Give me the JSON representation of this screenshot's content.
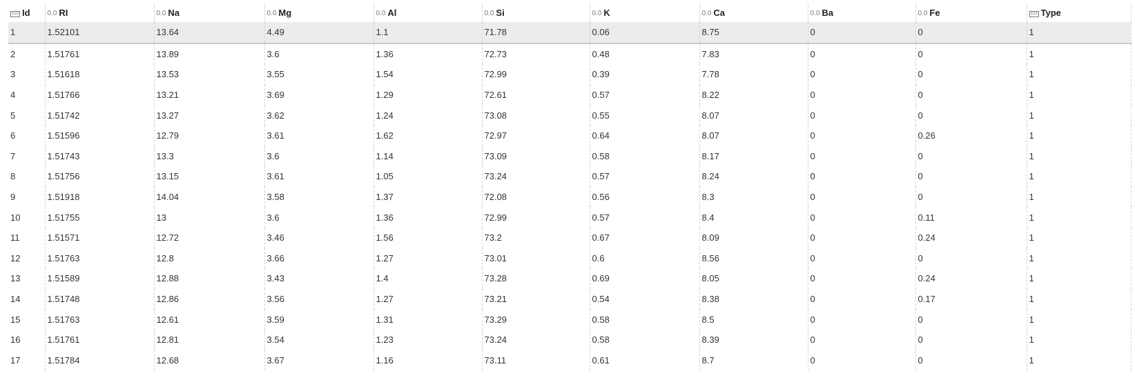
{
  "columns": [
    {
      "key": "id",
      "label": "Id",
      "type_icon": "123",
      "type": "int"
    },
    {
      "key": "ri",
      "label": "RI",
      "type_icon": "0.0",
      "type": "float"
    },
    {
      "key": "na",
      "label": "Na",
      "type_icon": "0.0",
      "type": "float"
    },
    {
      "key": "mg",
      "label": "Mg",
      "type_icon": "0.0",
      "type": "float"
    },
    {
      "key": "al",
      "label": "Al",
      "type_icon": "0.0",
      "type": "float"
    },
    {
      "key": "si",
      "label": "Si",
      "type_icon": "0.0",
      "type": "float"
    },
    {
      "key": "k",
      "label": "K",
      "type_icon": "0.0",
      "type": "float"
    },
    {
      "key": "ca",
      "label": "Ca",
      "type_icon": "0.0",
      "type": "float"
    },
    {
      "key": "ba",
      "label": "Ba",
      "type_icon": "0.0",
      "type": "float"
    },
    {
      "key": "fe",
      "label": "Fe",
      "type_icon": "0.0",
      "type": "float"
    },
    {
      "key": "type",
      "label": "Type",
      "type_icon": "123",
      "type": "int"
    }
  ],
  "rows": [
    [
      "1",
      "1.52101",
      "13.64",
      "4.49",
      "1.1",
      "71.78",
      "0.06",
      "8.75",
      "0",
      "0",
      "1"
    ],
    [
      "2",
      "1.51761",
      "13.89",
      "3.6",
      "1.36",
      "72.73",
      "0.48",
      "7.83",
      "0",
      "0",
      "1"
    ],
    [
      "3",
      "1.51618",
      "13.53",
      "3.55",
      "1.54",
      "72.99",
      "0.39",
      "7.78",
      "0",
      "0",
      "1"
    ],
    [
      "4",
      "1.51766",
      "13.21",
      "3.69",
      "1.29",
      "72.61",
      "0.57",
      "8.22",
      "0",
      "0",
      "1"
    ],
    [
      "5",
      "1.51742",
      "13.27",
      "3.62",
      "1.24",
      "73.08",
      "0.55",
      "8.07",
      "0",
      "0",
      "1"
    ],
    [
      "6",
      "1.51596",
      "12.79",
      "3.61",
      "1.62",
      "72.97",
      "0.64",
      "8.07",
      "0",
      "0.26",
      "1"
    ],
    [
      "7",
      "1.51743",
      "13.3",
      "3.6",
      "1.14",
      "73.09",
      "0.58",
      "8.17",
      "0",
      "0",
      "1"
    ],
    [
      "8",
      "1.51756",
      "13.15",
      "3.61",
      "1.05",
      "73.24",
      "0.57",
      "8.24",
      "0",
      "0",
      "1"
    ],
    [
      "9",
      "1.51918",
      "14.04",
      "3.58",
      "1.37",
      "72.08",
      "0.56",
      "8.3",
      "0",
      "0",
      "1"
    ],
    [
      "10",
      "1.51755",
      "13",
      "3.6",
      "1.36",
      "72.99",
      "0.57",
      "8.4",
      "0",
      "0.11",
      "1"
    ],
    [
      "11",
      "1.51571",
      "12.72",
      "3.46",
      "1.56",
      "73.2",
      "0.67",
      "8.09",
      "0",
      "0.24",
      "1"
    ],
    [
      "12",
      "1.51763",
      "12.8",
      "3.66",
      "1.27",
      "73.01",
      "0.6",
      "8.56",
      "0",
      "0",
      "1"
    ],
    [
      "13",
      "1.51589",
      "12.88",
      "3.43",
      "1.4",
      "73.28",
      "0.69",
      "8.05",
      "0",
      "0.24",
      "1"
    ],
    [
      "14",
      "1.51748",
      "12.86",
      "3.56",
      "1.27",
      "73.21",
      "0.54",
      "8.38",
      "0",
      "0.17",
      "1"
    ],
    [
      "15",
      "1.51763",
      "12.61",
      "3.59",
      "1.31",
      "73.29",
      "0.58",
      "8.5",
      "0",
      "0",
      "1"
    ],
    [
      "16",
      "1.51761",
      "12.81",
      "3.54",
      "1.23",
      "73.24",
      "0.58",
      "8.39",
      "0",
      "0",
      "1"
    ],
    [
      "17",
      "1.51784",
      "12.68",
      "3.67",
      "1.16",
      "73.11",
      "0.61",
      "8.7",
      "0",
      "0",
      "1"
    ]
  ],
  "selected_row_index": 0,
  "colors": {
    "selected_row_bg": "#ececec",
    "grid_line": "#d3d3d3"
  }
}
